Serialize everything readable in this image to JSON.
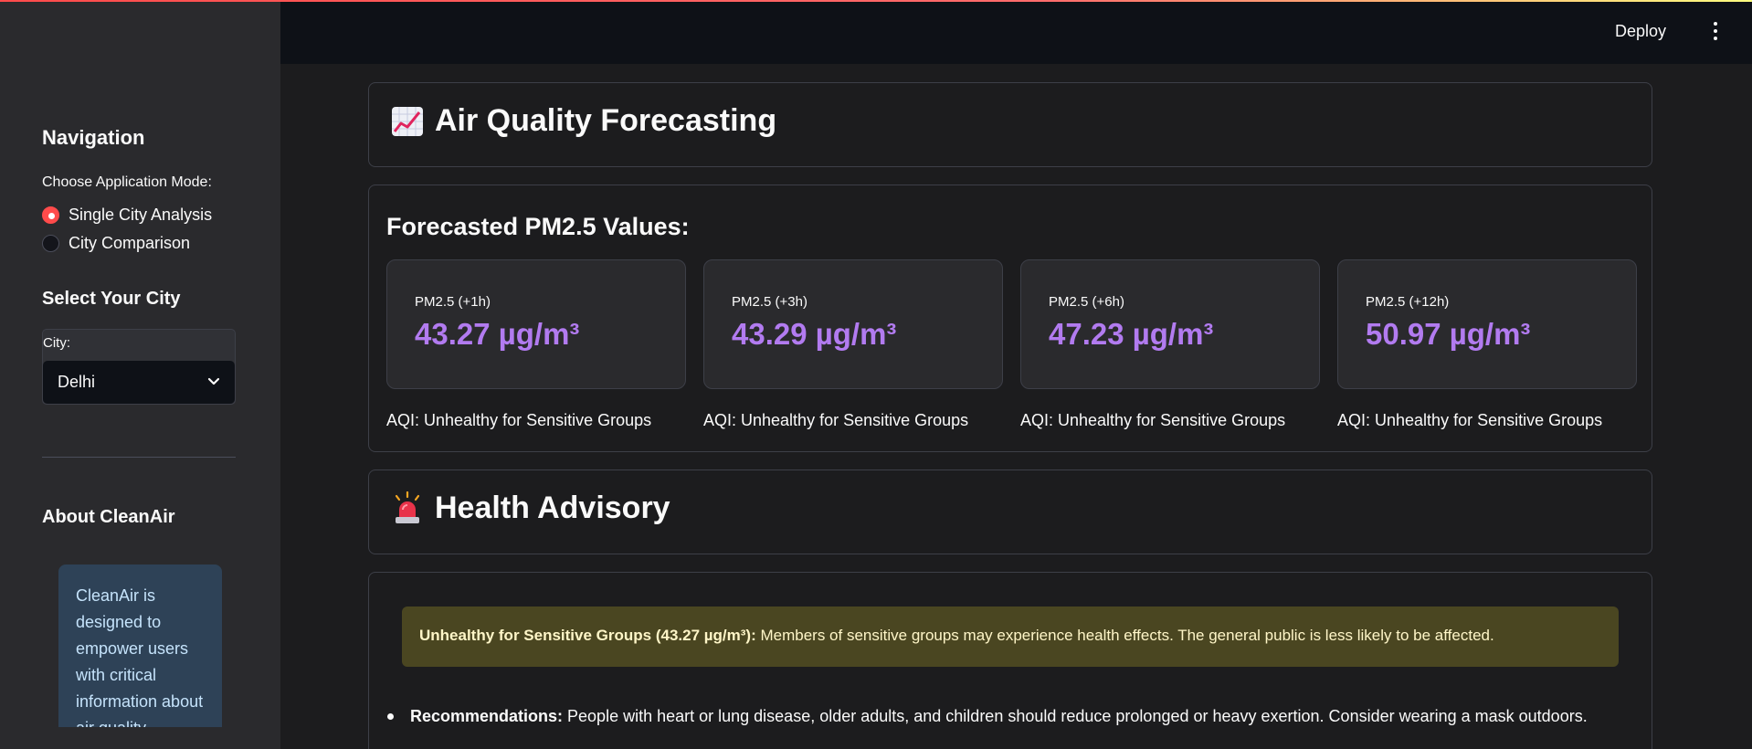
{
  "colors": {
    "accent": "#ff4b4b",
    "metric_value": "#b27bf0",
    "warning_bg": "#4a4621",
    "info_bg": "#2e4257"
  },
  "sidebar": {
    "navigation_title": "Navigation",
    "mode_label": "Choose Application Mode:",
    "modes": [
      {
        "label": "Single City Analysis",
        "selected": true
      },
      {
        "label": "City Comparison",
        "selected": false
      }
    ],
    "city_section_title": "Select Your City",
    "city_label": "City:",
    "city_value": "Delhi",
    "about_title": "About CleanAir",
    "about_text": "CleanAir is designed to empower users with critical information about air quality"
  },
  "header": {
    "deploy_label": "Deploy"
  },
  "main": {
    "forecast_title": "Air Quality Forecasting",
    "forecast_icon": "chart-increasing-icon",
    "forecast_subtitle": "Forecasted PM2.5 Values:",
    "metrics": [
      {
        "label": "PM2.5 (+1h)",
        "value": "43.27 µg/m³",
        "aqi": "AQI: Unhealthy for Sensitive Groups"
      },
      {
        "label": "PM2.5 (+3h)",
        "value": "43.29 µg/m³",
        "aqi": "AQI: Unhealthy for Sensitive Groups"
      },
      {
        "label": "PM2.5 (+6h)",
        "value": "47.23 µg/m³",
        "aqi": "AQI: Unhealthy for Sensitive Groups"
      },
      {
        "label": "PM2.5 (+12h)",
        "value": "50.97 µg/m³",
        "aqi": "AQI: Unhealthy for Sensitive Groups"
      }
    ],
    "advisory_title": "Health Advisory",
    "advisory_icon": "siren-icon",
    "warning_bold": "Unhealthy for Sensitive Groups (43.27 µg/m³):",
    "warning_text": " Members of sensitive groups may experience health effects. The general public is less likely to be affected.",
    "recommendation_bold": "Recommendations:",
    "recommendation_text": " People with heart or lung disease, older adults, and children should reduce prolonged or heavy exertion. Consider wearing a mask outdoors."
  }
}
